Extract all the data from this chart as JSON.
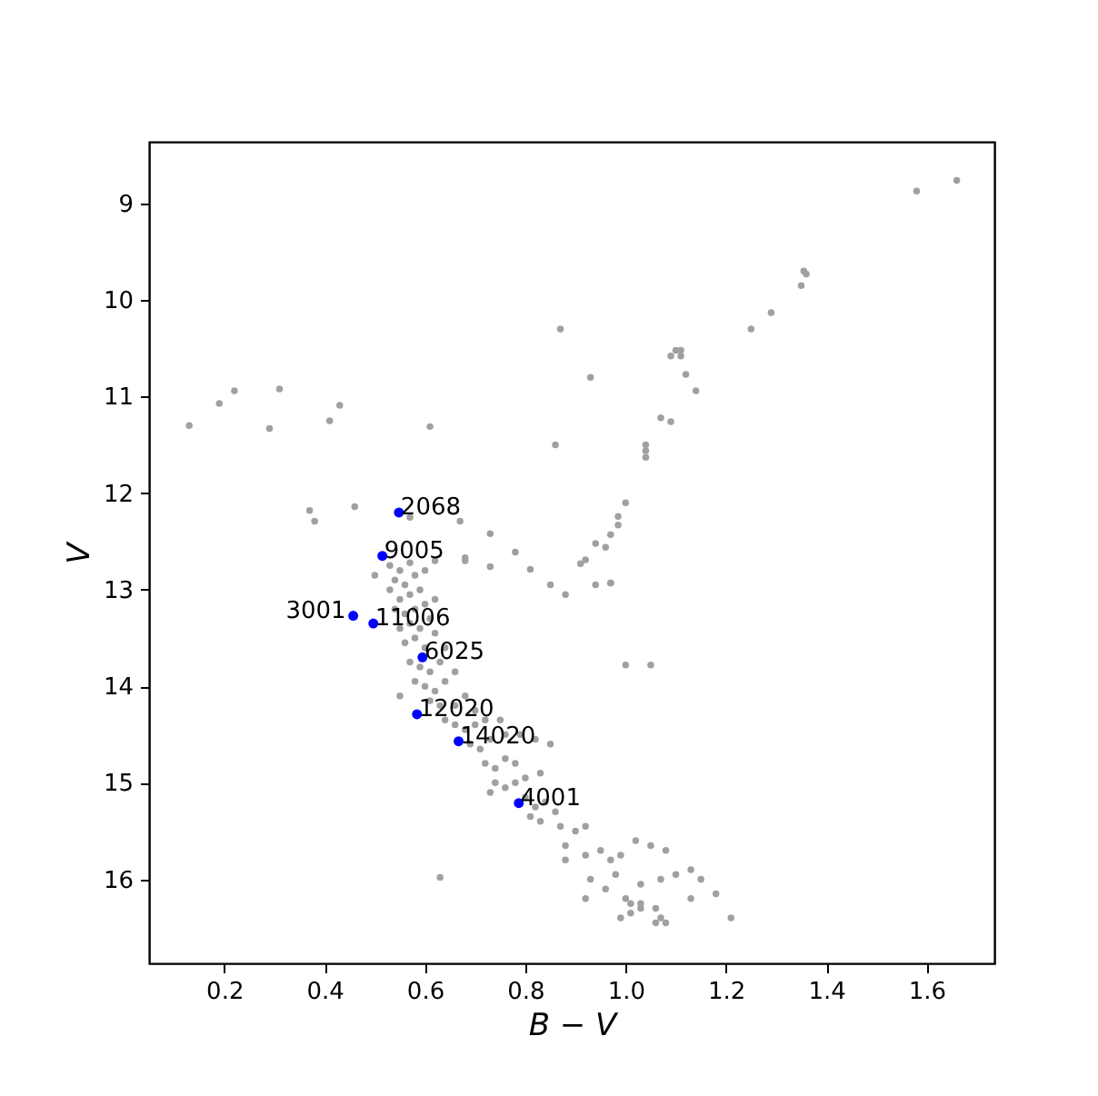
{
  "chart_data": {
    "type": "scatter",
    "xlabel": "B − V",
    "ylabel": "V",
    "xlim": [
      0.05,
      1.735
    ],
    "ylim": [
      16.87,
      8.36
    ],
    "xticks": [
      0.2,
      0.4,
      0.6,
      0.8,
      {
        "value": 1,
        "label": "1.0"
      },
      1.2,
      1.4,
      1.6
    ],
    "yticks": [
      9,
      10,
      11,
      12,
      13,
      14,
      15,
      16
    ],
    "grid": false,
    "legend": false,
    "marker": "circle",
    "series": [
      {
        "color": "#a0a0a0",
        "x": [
          1.66,
          1.58,
          1.355,
          1.36,
          1.35,
          1.29,
          1.25,
          0.87,
          1.1,
          1.11,
          1.09,
          1.11,
          1.12,
          1.14,
          0.93,
          1.07,
          1.09,
          1.04,
          1.04,
          1.04,
          1.0,
          0.985,
          0.985,
          0.97,
          0.96,
          0.94,
          0.92,
          0.97,
          0.86,
          0.13,
          0.19,
          0.22,
          0.31,
          0.29,
          0.41,
          0.43,
          0.61,
          0.37,
          0.38,
          0.46,
          0.57,
          0.67,
          0.73,
          0.78,
          0.73,
          0.81,
          0.85,
          0.88,
          0.91,
          0.94,
          0.97,
          1.0,
          1.05,
          0.68,
          0.68,
          0.53,
          0.55,
          0.57,
          0.54,
          0.56,
          0.58,
          0.6,
          0.62,
          0.5,
          0.53,
          0.55,
          0.57,
          0.59,
          0.54,
          0.56,
          0.58,
          0.6,
          0.62,
          0.55,
          0.57,
          0.59,
          0.61,
          0.56,
          0.58,
          0.6,
          0.62,
          0.64,
          0.57,
          0.59,
          0.61,
          0.63,
          0.66,
          0.58,
          0.6,
          0.62,
          0.64,
          0.55,
          0.61,
          0.63,
          0.66,
          0.68,
          0.7,
          0.64,
          0.66,
          0.68,
          0.7,
          0.72,
          0.75,
          0.69,
          0.71,
          0.73,
          0.76,
          0.79,
          0.82,
          0.85,
          0.72,
          0.74,
          0.76,
          0.78,
          0.74,
          0.76,
          0.78,
          0.8,
          0.83,
          0.73,
          0.8,
          0.82,
          0.84,
          0.86,
          0.81,
          0.83,
          0.87,
          0.9,
          0.92,
          0.88,
          0.92,
          0.95,
          0.97,
          0.99,
          0.88,
          1.02,
          1.05,
          1.08,
          0.93,
          0.98,
          1.03,
          1.07,
          1.1,
          1.13,
          1.15,
          0.96,
          0.92,
          1.0,
          1.01,
          1.03,
          1.13,
          1.18,
          0.99,
          1.01,
          1.03,
          1.06,
          1.07,
          1.08,
          1.06,
          1.21,
          0.63
        ],
        "values": [
          8.76,
          8.87,
          9.7,
          9.73,
          9.85,
          10.13,
          10.3,
          10.3,
          10.52,
          10.52,
          10.58,
          10.58,
          10.77,
          10.94,
          10.8,
          11.22,
          11.26,
          11.5,
          11.56,
          11.63,
          12.1,
          12.24,
          12.33,
          12.43,
          12.56,
          12.52,
          12.69,
          12.93,
          11.5,
          11.3,
          11.07,
          10.94,
          10.92,
          11.33,
          11.25,
          11.09,
          11.31,
          12.18,
          12.29,
          12.14,
          12.25,
          12.29,
          12.42,
          12.61,
          12.76,
          12.79,
          12.95,
          13.05,
          12.73,
          12.95,
          12.93,
          13.78,
          13.78,
          12.67,
          12.7,
          12.75,
          12.8,
          12.72,
          12.9,
          12.95,
          12.85,
          12.8,
          12.7,
          12.85,
          13.0,
          13.1,
          13.05,
          13.0,
          13.2,
          13.25,
          13.2,
          13.15,
          13.1,
          13.4,
          13.35,
          13.4,
          13.3,
          13.55,
          13.5,
          13.6,
          13.45,
          13.6,
          13.75,
          13.8,
          13.85,
          13.75,
          13.85,
          13.95,
          14.0,
          14.05,
          13.95,
          14.1,
          14.15,
          14.2,
          14.2,
          14.1,
          14.25,
          14.35,
          14.4,
          14.45,
          14.4,
          14.35,
          14.35,
          14.6,
          14.65,
          14.55,
          14.5,
          14.5,
          14.55,
          14.6,
          14.8,
          14.85,
          14.75,
          14.8,
          15.0,
          15.05,
          15.0,
          14.95,
          14.9,
          15.1,
          15.15,
          15.25,
          15.2,
          15.3,
          15.35,
          15.4,
          15.45,
          15.5,
          15.45,
          15.65,
          15.75,
          15.7,
          15.8,
          15.75,
          15.8,
          15.6,
          15.65,
          15.7,
          16.0,
          15.95,
          16.05,
          16.0,
          15.95,
          15.9,
          16.0,
          16.1,
          16.2,
          16.2,
          16.25,
          16.25,
          16.2,
          16.15,
          16.4,
          16.35,
          16.3,
          16.3,
          16.4,
          16.45,
          16.45,
          16.4,
          15.98
        ]
      },
      {
        "color": "#0000ff",
        "x": [
          0.548,
          0.515,
          0.457,
          0.497,
          0.595,
          0.584,
          0.667,
          0.787
        ],
        "values": [
          12.2,
          12.65,
          13.27,
          13.35,
          13.7,
          14.29,
          14.57,
          15.21
        ]
      }
    ],
    "annotations": [
      {
        "text": "2068",
        "x": 0.548,
        "y": 12.2
      },
      {
        "text": "9005",
        "x": 0.515,
        "y": 12.65
      },
      {
        "text": "3001",
        "x": 0.457,
        "y": 13.27
      },
      {
        "text": "11006",
        "x": 0.497,
        "y": 13.35
      },
      {
        "text": "6025",
        "x": 0.595,
        "y": 13.7
      },
      {
        "text": "12020",
        "x": 0.584,
        "y": 14.29
      },
      {
        "text": "14020",
        "x": 0.667,
        "y": 14.57
      },
      {
        "text": "4001",
        "x": 0.787,
        "y": 15.21
      }
    ]
  }
}
